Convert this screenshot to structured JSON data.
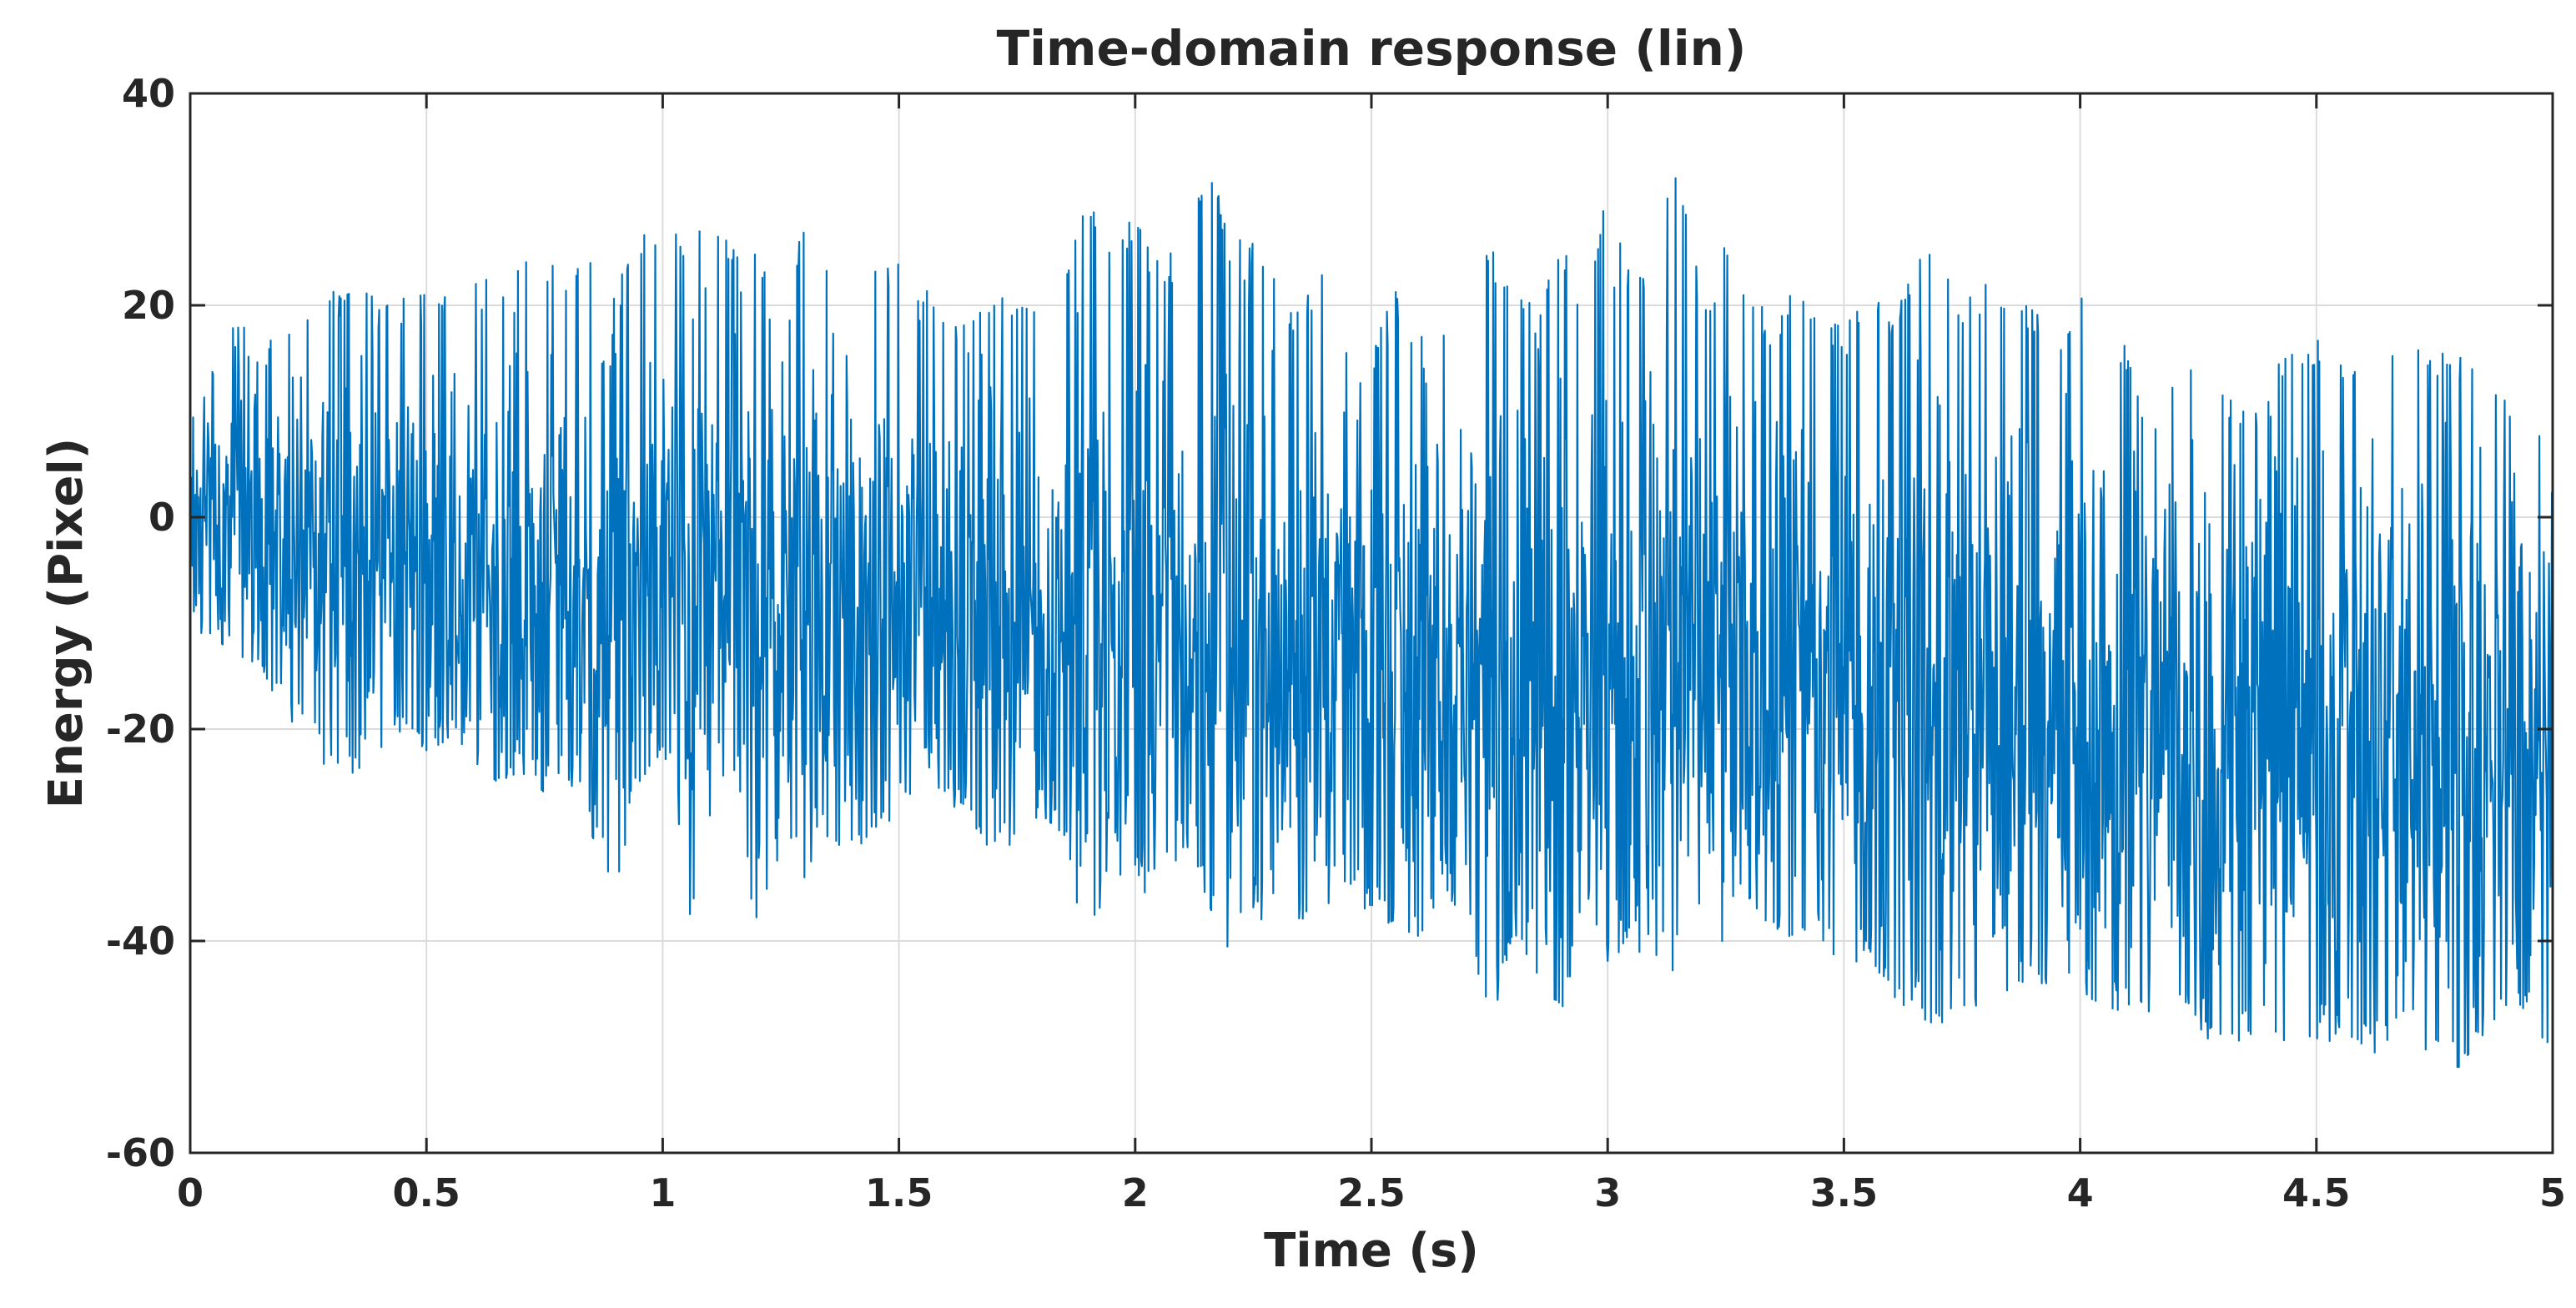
{
  "chart_data": {
    "type": "line",
    "title": "Time-domain response (lin)",
    "xlabel": "Time (s)",
    "ylabel": "Energy (Pixel)",
    "xlim": [
      0,
      5
    ],
    "ylim": [
      -60,
      40
    ],
    "xticks": [
      0,
      0.5,
      1,
      1.5,
      2,
      2.5,
      3,
      3.5,
      4,
      4.5,
      5
    ],
    "xtick_labels": [
      "0",
      "0.5",
      "1",
      "1.5",
      "2",
      "2.5",
      "3",
      "3.5",
      "4",
      "4.5",
      "5"
    ],
    "yticks": [
      40,
      20,
      0,
      -20,
      -40,
      -60
    ],
    "ytick_labels": [
      "40",
      "20",
      "0",
      "-20",
      "-40",
      "-60"
    ],
    "grid": true,
    "legend": "none",
    "series": [
      {
        "color": "#0072BD",
        "x": [
          0,
          0.05,
          0.1,
          0.15,
          0.2,
          0.25,
          0.3,
          0.35,
          0.4,
          0.45,
          0.5,
          0.55,
          0.6,
          0.65,
          0.7,
          0.75,
          0.8,
          0.85,
          0.9,
          0.95,
          1,
          1.05,
          1.1,
          1.15,
          1.2,
          1.25,
          1.3,
          1.35,
          1.4,
          1.45,
          1.5,
          1.55,
          1.6,
          1.65,
          1.7,
          1.75,
          1.8,
          1.85,
          1.9,
          1.95,
          2,
          2.05,
          2.1,
          2.15,
          2.2,
          2.25,
          2.3,
          2.35,
          2.4,
          2.45,
          2.5,
          2.55,
          2.6,
          2.65,
          2.7,
          2.75,
          2.8,
          2.85,
          2.9,
          2.95,
          3,
          3.05,
          3.1,
          3.15,
          3.2,
          3.25,
          3.3,
          3.35,
          3.4,
          3.45,
          3.5,
          3.55,
          3.6,
          3.65,
          3.7,
          3.75,
          3.8,
          3.85,
          3.9,
          3.95,
          4,
          4.05,
          4.1,
          4.15,
          4.2,
          4.25,
          4.3,
          4.35,
          4.4,
          4.45,
          4.5,
          4.55,
          4.6,
          4.65,
          4.7,
          4.75,
          4.8,
          4.85,
          4.9,
          4.95,
          5
        ],
        "y_upper": [
          10,
          15,
          20,
          16,
          18,
          20,
          22,
          21,
          22,
          21,
          23,
          22,
          23,
          22,
          26,
          24,
          24,
          26,
          22,
          26,
          29,
          27,
          29,
          26,
          25,
          24,
          27,
          26,
          25,
          24,
          24,
          22,
          20,
          18,
          22,
          20,
          22,
          24,
          30,
          26,
          29,
          24,
          26,
          35,
          27,
          26,
          22,
          20,
          24,
          20,
          16,
          22,
          18,
          20,
          18,
          26,
          22,
          20,
          27,
          20,
          33,
          22,
          26,
          35,
          20,
          26,
          22,
          18,
          24,
          20,
          18,
          22,
          20,
          24,
          27,
          20,
          24,
          20,
          20,
          18,
          22,
          20,
          16,
          10,
          15,
          17,
          12,
          10,
          12,
          18,
          17,
          15,
          14,
          16,
          18,
          16,
          15,
          17,
          12,
          10,
          5
        ],
        "y_lower": [
          -10,
          -12,
          -13,
          -14,
          -19,
          -20,
          -25,
          -24,
          -22,
          -20,
          -22,
          -21,
          -23,
          -25,
          -24,
          -26,
          -25,
          -30,
          -35,
          -25,
          -22,
          -42,
          -31,
          -33,
          -40,
          -31,
          -34,
          -30,
          -32,
          -30,
          -28,
          -24,
          -27,
          -28,
          -33,
          -30,
          -28,
          -30,
          -42,
          -33,
          -35,
          -36,
          -31,
          -36,
          -41,
          -39,
          -36,
          -38,
          -37,
          -34,
          -39,
          -38,
          -40,
          -35,
          -38,
          -49,
          -39,
          -43,
          -47,
          -38,
          -42,
          -40,
          -43,
          -44,
          -40,
          -40,
          -36,
          -39,
          -40,
          -40,
          -43,
          -41,
          -45,
          -47,
          -48,
          -46,
          -48,
          -45,
          -44,
          -44,
          -45,
          -46,
          -47,
          -49,
          -48,
          -48,
          -51,
          -49,
          -50,
          -49,
          -50,
          -49,
          -51,
          -50,
          -49,
          -51,
          -52,
          -49,
          -46,
          -48,
          -50
        ],
        "y_center": [
          0,
          0,
          -1,
          -2,
          -3,
          -3,
          -4,
          -4,
          -3,
          -4,
          -5,
          -5,
          -6,
          -5,
          -7,
          -6,
          -7,
          -8,
          -8,
          -7,
          -6,
          -8,
          -8,
          -9,
          -9,
          -8,
          -7,
          -8,
          -9,
          -10,
          -9,
          -8,
          -9,
          -10,
          -11,
          -10,
          -10,
          -11,
          -12,
          -12,
          -12,
          -13,
          -12,
          -13,
          -14,
          -13,
          -14,
          -14,
          -13,
          -14,
          -15,
          -15,
          -15,
          -14,
          -15,
          -16,
          -16,
          -15,
          -14,
          -15,
          -15,
          -16,
          -16,
          -15,
          -16,
          -17,
          -18,
          -17,
          -16,
          -17,
          -17,
          -18,
          -18,
          -19,
          -20,
          -19,
          -19,
          -20,
          -19,
          -19,
          -20,
          -21,
          -20,
          -20,
          -19,
          -20,
          -21,
          -21,
          -21,
          -20,
          -21,
          -21,
          -22,
          -21,
          -21,
          -22,
          -22,
          -21,
          -21,
          -22,
          -20
        ]
      }
    ]
  }
}
